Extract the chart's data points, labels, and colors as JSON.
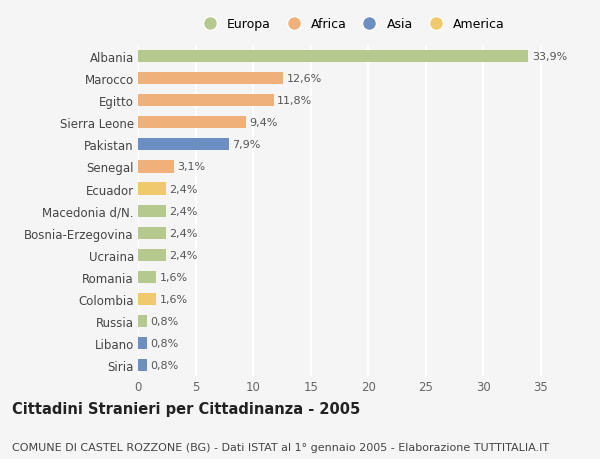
{
  "countries": [
    "Albania",
    "Marocco",
    "Egitto",
    "Sierra Leone",
    "Pakistan",
    "Senegal",
    "Ecuador",
    "Macedonia d/N.",
    "Bosnia-Erzegovina",
    "Ucraina",
    "Romania",
    "Colombia",
    "Russia",
    "Libano",
    "Siria"
  ],
  "values": [
    33.9,
    12.6,
    11.8,
    9.4,
    7.9,
    3.1,
    2.4,
    2.4,
    2.4,
    2.4,
    1.6,
    1.6,
    0.8,
    0.8,
    0.8
  ],
  "labels": [
    "33,9%",
    "12,6%",
    "11,8%",
    "9,4%",
    "7,9%",
    "3,1%",
    "2,4%",
    "2,4%",
    "2,4%",
    "2,4%",
    "1,6%",
    "1,6%",
    "0,8%",
    "0,8%",
    "0,8%"
  ],
  "continents": [
    "Europa",
    "Africa",
    "Africa",
    "Africa",
    "Asia",
    "Africa",
    "America",
    "Europa",
    "Europa",
    "Europa",
    "Europa",
    "America",
    "Europa",
    "Asia",
    "Asia"
  ],
  "continent_colors": {
    "Europa": "#b5c98e",
    "Africa": "#f0b07a",
    "Asia": "#6b8fc2",
    "America": "#f0c96e"
  },
  "xlim": [
    0,
    37
  ],
  "xticks": [
    0,
    5,
    10,
    15,
    20,
    25,
    30,
    35
  ],
  "background_color": "#f5f5f5",
  "grid_color": "#ffffff",
  "title": "Cittadini Stranieri per Cittadinanza - 2005",
  "subtitle": "COMUNE DI CASTEL ROZZONE (BG) - Dati ISTAT al 1° gennaio 2005 - Elaborazione TUTTITALIA.IT",
  "title_fontsize": 10.5,
  "subtitle_fontsize": 8,
  "bar_height": 0.55,
  "legend_order": [
    "Europa",
    "Africa",
    "Asia",
    "America"
  ]
}
